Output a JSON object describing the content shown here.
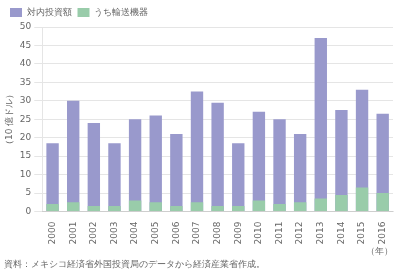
{
  "chart_data": {
    "type": "bar",
    "categories": [
      "2000",
      "2001",
      "2002",
      "2003",
      "2004",
      "2005",
      "2006",
      "2007",
      "2008",
      "2009",
      "2010",
      "2011",
      "2012",
      "2013",
      "2014",
      "2015",
      "2016"
    ],
    "series": [
      {
        "name": "対内投資額",
        "color": "#9999cc",
        "values": [
          18.5,
          30.0,
          24.0,
          18.5,
          25.0,
          26.0,
          21.0,
          32.5,
          29.5,
          18.5,
          27.0,
          25.0,
          21.0,
          47.0,
          27.5,
          33.0,
          26.5
        ]
      },
      {
        "name": "うち輸送機器",
        "color": "#99ccaa",
        "values": [
          2.0,
          2.5,
          1.5,
          1.5,
          3.0,
          2.5,
          1.5,
          2.5,
          1.5,
          1.5,
          3.0,
          2.0,
          2.5,
          3.5,
          4.5,
          6.5,
          5.0
        ]
      }
    ],
    "ylabel": "（10 億ドル）",
    "xlabel": "（年）",
    "source": "資料：メキシコ経済省外国投資局のデータから経済産業省作成。",
    "ylim": [
      0,
      50
    ],
    "yticks": [
      0,
      5,
      10,
      15,
      20,
      25,
      30,
      35,
      40,
      45,
      50
    ],
    "grid": true,
    "legend": "upper left"
  }
}
